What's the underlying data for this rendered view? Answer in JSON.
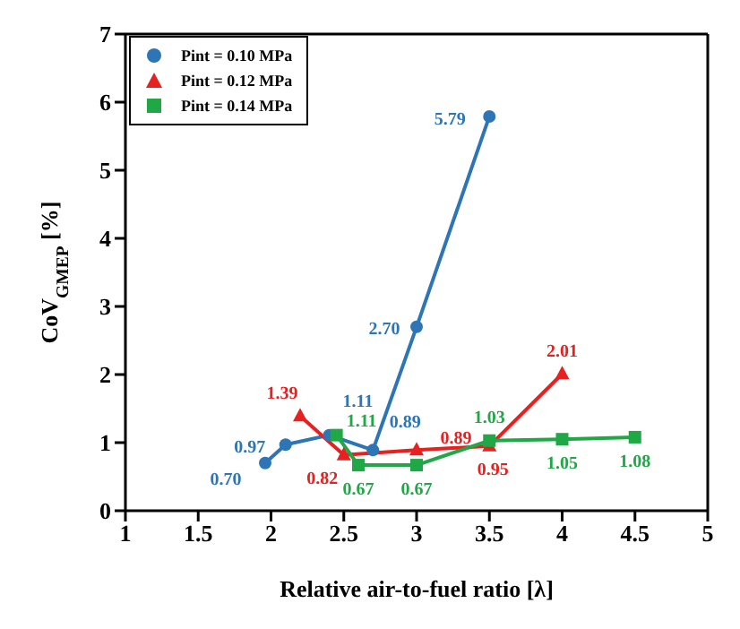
{
  "chart_data": {
    "type": "line",
    "xlabel": "Relative air-to-fuel ratio [λ]",
    "ylabel": "CoV$_{GMEP}$ [%]",
    "xlim": [
      1,
      5
    ],
    "xticks": [
      1,
      1.5,
      2,
      2.5,
      3,
      3.5,
      4,
      4.5,
      5
    ],
    "ylim": [
      0,
      7
    ],
    "yticks": [
      0,
      1,
      2,
      3,
      4,
      5,
      6,
      7
    ],
    "grid": false,
    "legend": "top left",
    "series": [
      {
        "name": "Pint = 0.10 MPa",
        "color": "#2e75b6",
        "marker": "circle",
        "x": [
          1.96,
          2.1,
          2.4,
          2.7,
          3.0,
          3.5
        ],
        "values": [
          0.7,
          0.97,
          1.11,
          0.89,
          2.7,
          5.79
        ],
        "value_labels": [
          "0.70",
          "0.97",
          "1.11",
          "0.89",
          "2.70",
          "5.79"
        ]
      },
      {
        "name": "Pint = 0.12 MPa",
        "color": "#e8201f",
        "marker": "triangle",
        "x": [
          2.2,
          2.5,
          3.0,
          3.5,
          4.0
        ],
        "values": [
          1.39,
          0.82,
          0.89,
          0.95,
          2.01
        ],
        "value_labels": [
          "1.39",
          "0.82",
          "0.89",
          "0.95",
          "2.01"
        ]
      },
      {
        "name": "Pint = 0.14 MPa",
        "color": "#21a846",
        "marker": "square",
        "x": [
          2.45,
          2.6,
          3.0,
          3.5,
          4.0,
          4.5
        ],
        "values": [
          1.11,
          0.67,
          0.67,
          1.03,
          1.05,
          1.08
        ],
        "value_labels": [
          "1.11",
          "0.67",
          "0.67",
          "1.03",
          "1.05",
          "1.08"
        ]
      }
    ]
  }
}
